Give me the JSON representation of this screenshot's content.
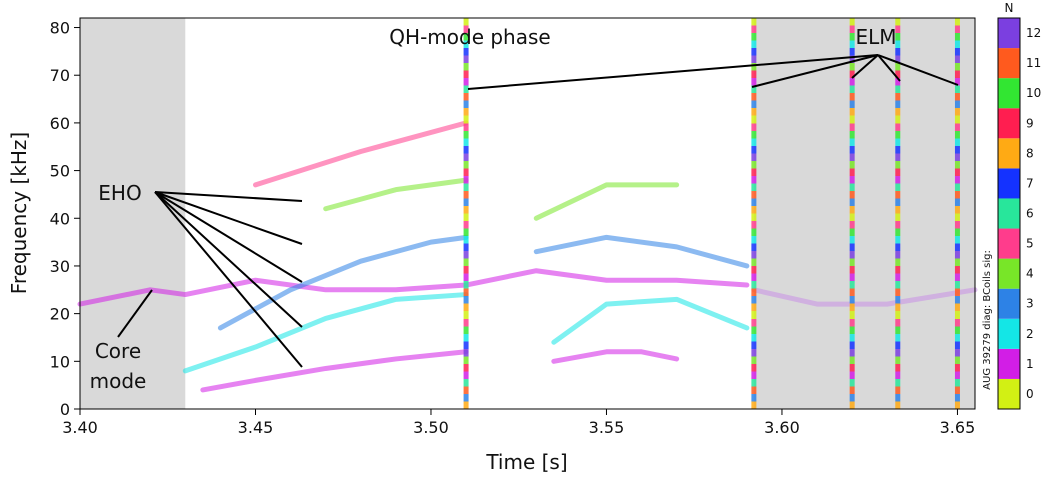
{
  "chart_data": {
    "type": "spectrogram",
    "xlabel": "Time [s]",
    "ylabel": "Frequency [kHz]",
    "xlim": [
      3.4,
      3.655
    ],
    "ylim": [
      0,
      82
    ],
    "xticks": [
      {
        "value": 3.4,
        "label": "3.40"
      },
      {
        "value": 3.45,
        "label": "3.45"
      },
      {
        "value": 3.5,
        "label": "3.50"
      },
      {
        "value": 3.55,
        "label": "3.55"
      },
      {
        "value": 3.6,
        "label": "3.60"
      },
      {
        "value": 3.65,
        "label": "3.65"
      }
    ],
    "yticks": [
      0,
      10,
      20,
      30,
      40,
      50,
      60,
      70,
      80
    ],
    "shaded_regions": [
      [
        3.4,
        3.43
      ],
      [
        3.592,
        3.655
      ]
    ],
    "elm_times": [
      3.51,
      3.592,
      3.62,
      3.633,
      3.65
    ],
    "series": [
      {
        "color": "#d21ee6",
        "x": [
          3.435,
          3.45,
          3.47,
          3.49,
          3.51,
          null,
          3.535,
          3.55,
          3.56,
          3.57
        ],
        "values": [
          4,
          6,
          8.5,
          10.5,
          12,
          null,
          10,
          12,
          12,
          10.5
        ]
      },
      {
        "color": "#d21ee6",
        "x": [
          3.4,
          3.42,
          3.43,
          3.45,
          3.47,
          3.49,
          3.51,
          3.53,
          3.55,
          3.57,
          3.59
        ],
        "values": [
          22,
          25,
          24,
          27,
          25,
          25,
          26,
          29,
          27,
          27,
          26
        ]
      },
      {
        "color": "#14e6e6",
        "x": [
          3.43,
          3.45,
          3.47,
          3.49,
          3.51,
          null,
          3.535,
          3.55,
          3.57,
          3.59
        ],
        "values": [
          8,
          13,
          19,
          23,
          24,
          null,
          14,
          22,
          23,
          17
        ]
      },
      {
        "color": "#2d82e6",
        "x": [
          3.44,
          3.46,
          3.48,
          3.5,
          3.51,
          null,
          3.53,
          3.55,
          3.57,
          3.59
        ],
        "values": [
          17,
          25,
          31,
          35,
          36,
          null,
          33,
          36,
          34,
          30
        ]
      },
      {
        "color": "#78e628",
        "x": [
          3.47,
          3.49,
          3.51,
          null,
          3.53,
          3.55,
          3.57
        ],
        "values": [
          42,
          46,
          48,
          null,
          40,
          47,
          47
        ]
      },
      {
        "color": "#ff3c8c",
        "x": [
          3.45,
          3.48,
          3.51
        ],
        "values": [
          47,
          54,
          60
        ]
      },
      {
        "color": "#c890e6",
        "x": [
          3.592,
          3.61,
          3.63,
          3.655
        ],
        "values": [
          25,
          22,
          22,
          25
        ]
      }
    ],
    "annotations": [
      "QH-mode phase",
      "ELM",
      "EHO",
      "Core",
      "mode"
    ],
    "colorbar": {
      "title": "N",
      "side_label": "AUG 39279 diag: BCoils sig:",
      "levels": [
        0,
        1,
        2,
        3,
        4,
        5,
        6,
        7,
        8,
        9,
        10,
        11,
        12
      ],
      "colors": [
        "#d2f014",
        "#d21ee6",
        "#14e6e6",
        "#2d82e6",
        "#78e628",
        "#ff3c8c",
        "#28e69b",
        "#1432ff",
        "#ffaa14",
        "#ff1e50",
        "#32e632",
        "#ff5a1e",
        "#7b3fe0"
      ]
    }
  }
}
